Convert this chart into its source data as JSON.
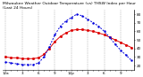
{
  "title": "Milwaukee Weather Outdoor Temperature (vs) THSW Index per Hour (Last 24 Hours)",
  "title_fontsize": 3.2,
  "bg_color": "#ffffff",
  "grid_color": "#888888",
  "red_line_color": "#dd0000",
  "blue_line_color": "#0000dd",
  "x_hours": [
    0,
    1,
    2,
    3,
    4,
    5,
    6,
    7,
    8,
    9,
    10,
    11,
    12,
    13,
    14,
    15,
    16,
    17,
    18,
    19,
    20,
    21,
    22,
    23
  ],
  "temp_values": [
    30,
    29,
    29,
    28,
    28,
    28,
    29,
    33,
    40,
    48,
    54,
    58,
    61,
    62,
    62,
    61,
    60,
    58,
    56,
    53,
    50,
    47,
    44,
    41
  ],
  "thsw_values": [
    24,
    23,
    22,
    21,
    21,
    21,
    23,
    30,
    42,
    56,
    66,
    72,
    76,
    80,
    78,
    74,
    70,
    66,
    60,
    53,
    45,
    38,
    32,
    26
  ],
  "ylim_min": 15,
  "ylim_max": 85,
  "ytick_values": [
    20,
    30,
    40,
    50,
    60,
    70,
    80
  ],
  "ylabel_fontsize": 3.0,
  "xlabel_fontsize": 3.0,
  "line_width": 0.7,
  "marker_size": 1.0,
  "xtick_positions": [
    0,
    1,
    2,
    3,
    4,
    5,
    6,
    7,
    8,
    9,
    10,
    11,
    12,
    13,
    14,
    15,
    16,
    17,
    18,
    19,
    20,
    21,
    22,
    23
  ],
  "xtick_labels": [
    "12a",
    "",
    "",
    "3",
    "",
    "",
    "6",
    "",
    "",
    "9",
    "",
    "",
    "12p",
    "",
    "",
    "3",
    "",
    "",
    "6",
    "",
    "",
    "9",
    "",
    ""
  ]
}
